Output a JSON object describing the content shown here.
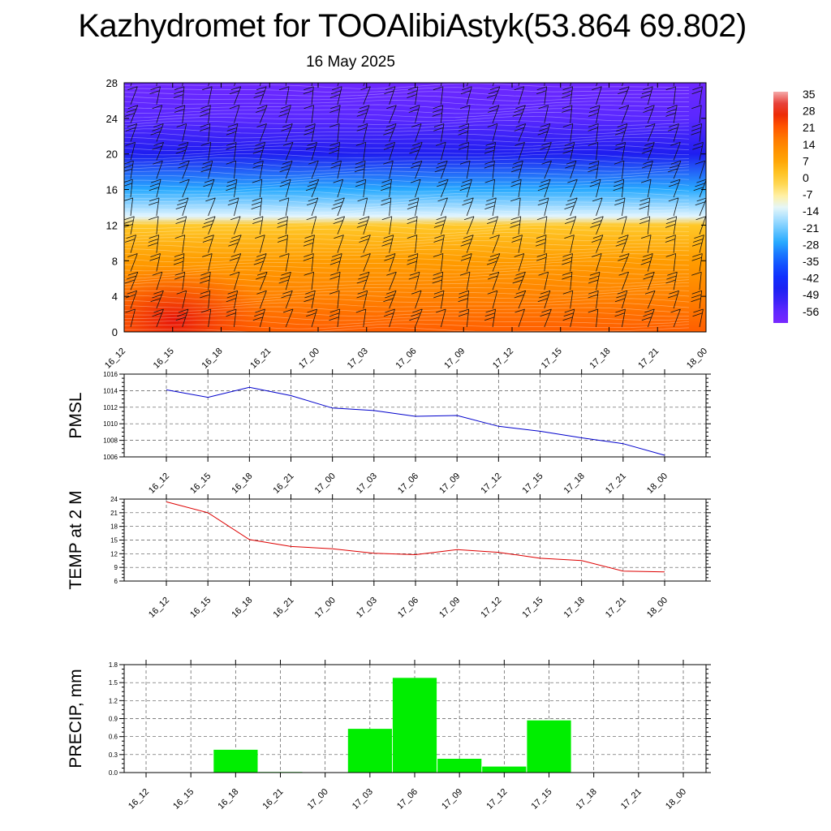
{
  "title": "Kazhydromet for TOOAlibiAstyk(53.864 69.802)",
  "subtitle": "16 May 2025",
  "time_labels": [
    "16_12",
    "16_15",
    "16_18",
    "16_21",
    "17_00",
    "17_03",
    "17_06",
    "17_09",
    "17_12",
    "17_15",
    "17_18",
    "17_21",
    "18_00"
  ],
  "colorbar": {
    "labels": [
      "35",
      "28",
      "21",
      "14",
      "7",
      "0",
      "-7",
      "-14",
      "-21",
      "-28",
      "-35",
      "-42",
      "-49",
      "-56"
    ],
    "stops": [
      "#f4b0b0",
      "#e01010",
      "#ff5500",
      "#ff9900",
      "#ffcc33",
      "#fff2a0",
      "#d8f0ff",
      "#30b8ff",
      "#1068ff",
      "#1010ee",
      "#6a28ff",
      "#a040ff"
    ]
  },
  "chart_data": [
    {
      "type": "heatmap",
      "name": "temperature-wind cross section",
      "x": [
        "16_12",
        "16_15",
        "16_18",
        "16_21",
        "17_00",
        "17_03",
        "17_06",
        "17_09",
        "17_12",
        "17_15",
        "17_18",
        "17_21",
        "18_00"
      ],
      "ylim": [
        0,
        28
      ],
      "yticks": [
        "0",
        "4",
        "8",
        "12",
        "16",
        "20",
        "24",
        "28"
      ],
      "value_range": [
        -56,
        35
      ],
      "profile": [
        {
          "level": 0,
          "value": 19
        },
        {
          "level": 4,
          "value": 14
        },
        {
          "level": 8,
          "value": 8
        },
        {
          "level": 12,
          "value": 0
        },
        {
          "level": 13,
          "value": -14
        },
        {
          "level": 16,
          "value": -28
        },
        {
          "level": 20,
          "value": -49
        },
        {
          "level": 24,
          "value": -56
        },
        {
          "level": 28,
          "value": -60
        }
      ]
    },
    {
      "type": "line",
      "ylabel": "PMSL",
      "color": "#0000cc",
      "categories": [
        "16_12",
        "16_15",
        "16_18",
        "16_21",
        "17_00",
        "17_03",
        "17_06",
        "17_09",
        "17_12",
        "17_15",
        "17_18",
        "17_21",
        "18_00"
      ],
      "values": [
        1014.1,
        1013.2,
        1014.4,
        1013.4,
        1011.9,
        1011.6,
        1010.9,
        1011.0,
        1009.7,
        1009.1,
        1008.3,
        1007.6,
        1006.2
      ],
      "ylim": [
        1006,
        1016
      ],
      "yticks": [
        "1006",
        "1008",
        "1010",
        "1012",
        "1014",
        "1016"
      ],
      "grid": true
    },
    {
      "type": "line",
      "ylabel": "TEMP at 2 M",
      "color": "#dd0000",
      "categories": [
        "16_12",
        "16_15",
        "16_18",
        "16_21",
        "17_00",
        "17_03",
        "17_06",
        "17_09",
        "17_12",
        "17_15",
        "17_18",
        "17_21",
        "18_00"
      ],
      "values": [
        23.4,
        21.0,
        15.1,
        13.6,
        13.1,
        12.1,
        11.8,
        12.9,
        12.3,
        11.0,
        10.5,
        8.2,
        8.0
      ],
      "ylim": [
        6,
        24
      ],
      "yticks": [
        "6",
        "9",
        "12",
        "15",
        "18",
        "21",
        "24"
      ],
      "grid": true
    },
    {
      "type": "bar",
      "ylabel": "PRECIP, mm",
      "color": "#00ee00",
      "categories": [
        "16_12",
        "16_15",
        "16_18",
        "16_21",
        "17_00",
        "17_03",
        "17_06",
        "17_09",
        "17_12",
        "17_15",
        "17_18",
        "17_21",
        "18_00"
      ],
      "values": [
        0,
        0,
        0.38,
        0.01,
        0,
        0.73,
        1.58,
        0.23,
        0.1,
        0.87,
        0,
        0,
        0
      ],
      "ylim": [
        0,
        1.8
      ],
      "yticks": [
        "0.0",
        "0.3",
        "0.6",
        "0.9",
        "1.2",
        "1.5",
        "1.8"
      ],
      "grid": true
    }
  ]
}
